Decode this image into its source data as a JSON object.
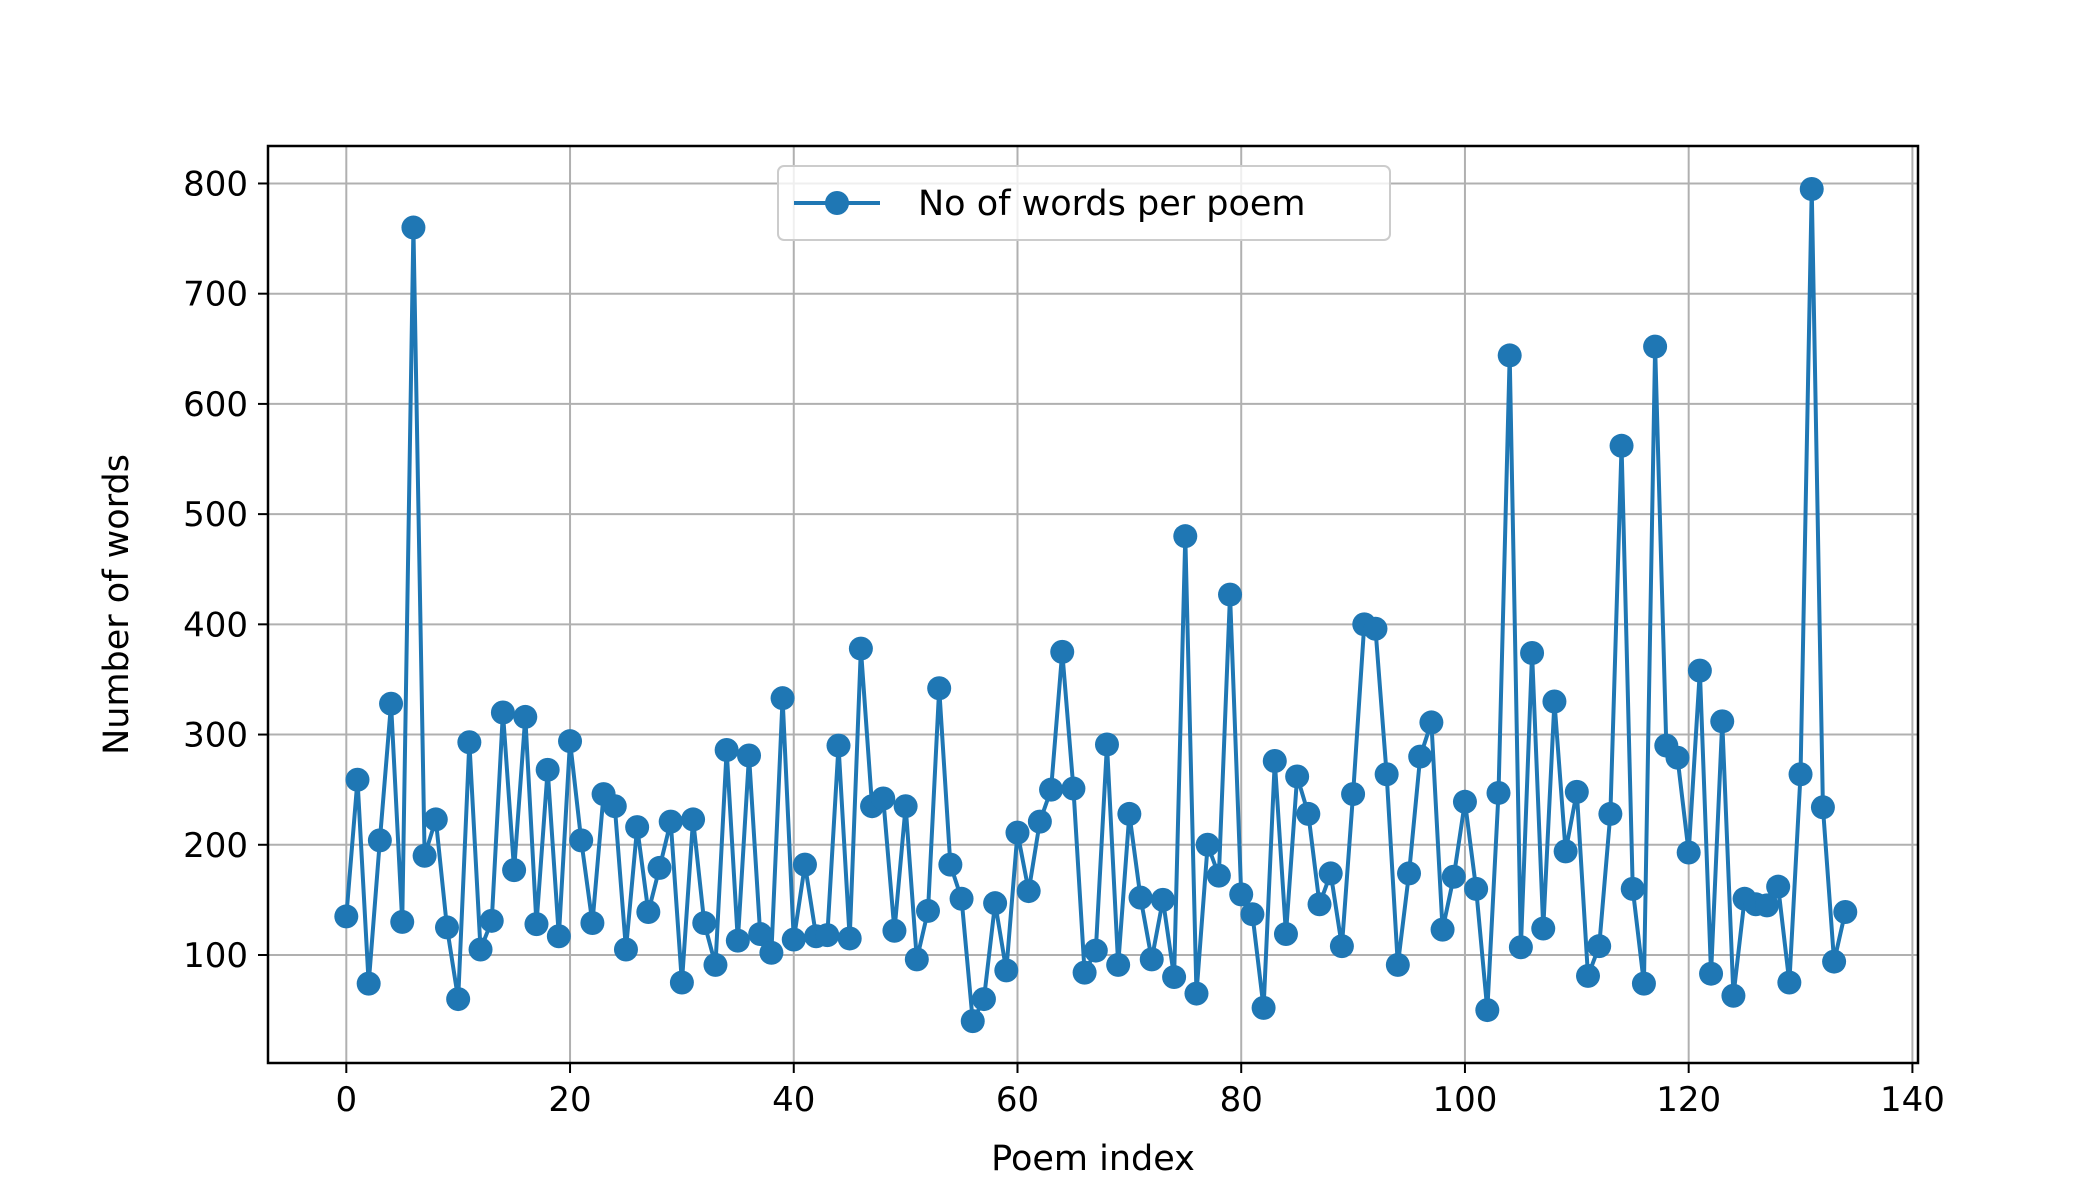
{
  "chart_data": {
    "type": "line",
    "title": "",
    "xlabel": "Poem index",
    "ylabel": "Number of words",
    "xlim": [
      -7,
      140.5
    ],
    "ylim": [
      2,
      834
    ],
    "xticks": [
      0,
      20,
      40,
      60,
      80,
      100,
      120,
      140
    ],
    "yticks": [
      100,
      200,
      300,
      400,
      500,
      600,
      700,
      800
    ],
    "grid": true,
    "legend_position": "top-center",
    "color": "#1f77b4",
    "series": [
      {
        "name": "No of words per poem",
        "marker": "circle",
        "x": [
          0,
          1,
          2,
          3,
          4,
          5,
          6,
          7,
          8,
          9,
          10,
          11,
          12,
          13,
          14,
          15,
          16,
          17,
          18,
          19,
          20,
          21,
          22,
          23,
          24,
          25,
          26,
          27,
          28,
          29,
          30,
          31,
          32,
          33,
          34,
          35,
          36,
          37,
          38,
          39,
          40,
          41,
          42,
          43,
          44,
          45,
          46,
          47,
          48,
          49,
          50,
          51,
          52,
          53,
          54,
          55,
          56,
          57,
          58,
          59,
          60,
          61,
          62,
          63,
          64,
          65,
          66,
          67,
          68,
          69,
          70,
          71,
          72,
          73,
          74,
          75,
          76,
          77,
          78,
          79,
          80,
          81,
          82,
          83,
          84,
          85,
          86,
          87,
          88,
          89,
          90,
          91,
          92,
          93,
          94,
          95,
          96,
          97,
          98,
          99,
          100,
          101,
          102,
          103,
          104,
          105,
          106,
          107,
          108,
          109,
          110,
          111,
          112,
          113,
          114,
          115,
          116,
          117,
          118,
          119,
          120,
          121,
          122,
          123,
          124,
          125,
          126,
          127,
          128,
          129,
          130,
          131,
          132,
          133,
          134
        ],
        "y": [
          135,
          259,
          74,
          204,
          328,
          130,
          760,
          190,
          223,
          125,
          60,
          293,
          105,
          131,
          320,
          177,
          316,
          128,
          268,
          117,
          294,
          204,
          129,
          246,
          235,
          105,
          216,
          139,
          179,
          221,
          75,
          223,
          129,
          91,
          286,
          113,
          281,
          119,
          102,
          333,
          114,
          182,
          117,
          118,
          290,
          115,
          378,
          235,
          242,
          122,
          235,
          96,
          140,
          342,
          182,
          151,
          40,
          60,
          147,
          86,
          211,
          158,
          221,
          250,
          375,
          251,
          84,
          104,
          291,
          91,
          228,
          152,
          96,
          150,
          80,
          480,
          65,
          200,
          172,
          427,
          155,
          137,
          52,
          276,
          119,
          262,
          228,
          146,
          174,
          108,
          246,
          400,
          396,
          264,
          91,
          174,
          280,
          311,
          123,
          171,
          239,
          160,
          50,
          247,
          644,
          107,
          374,
          124,
          330,
          194,
          248,
          81,
          108,
          228,
          562,
          160,
          74,
          652,
          290,
          279,
          193,
          358,
          83,
          312,
          63,
          151,
          146,
          145,
          162,
          75,
          264,
          795,
          234,
          94,
          139
        ]
      }
    ]
  }
}
